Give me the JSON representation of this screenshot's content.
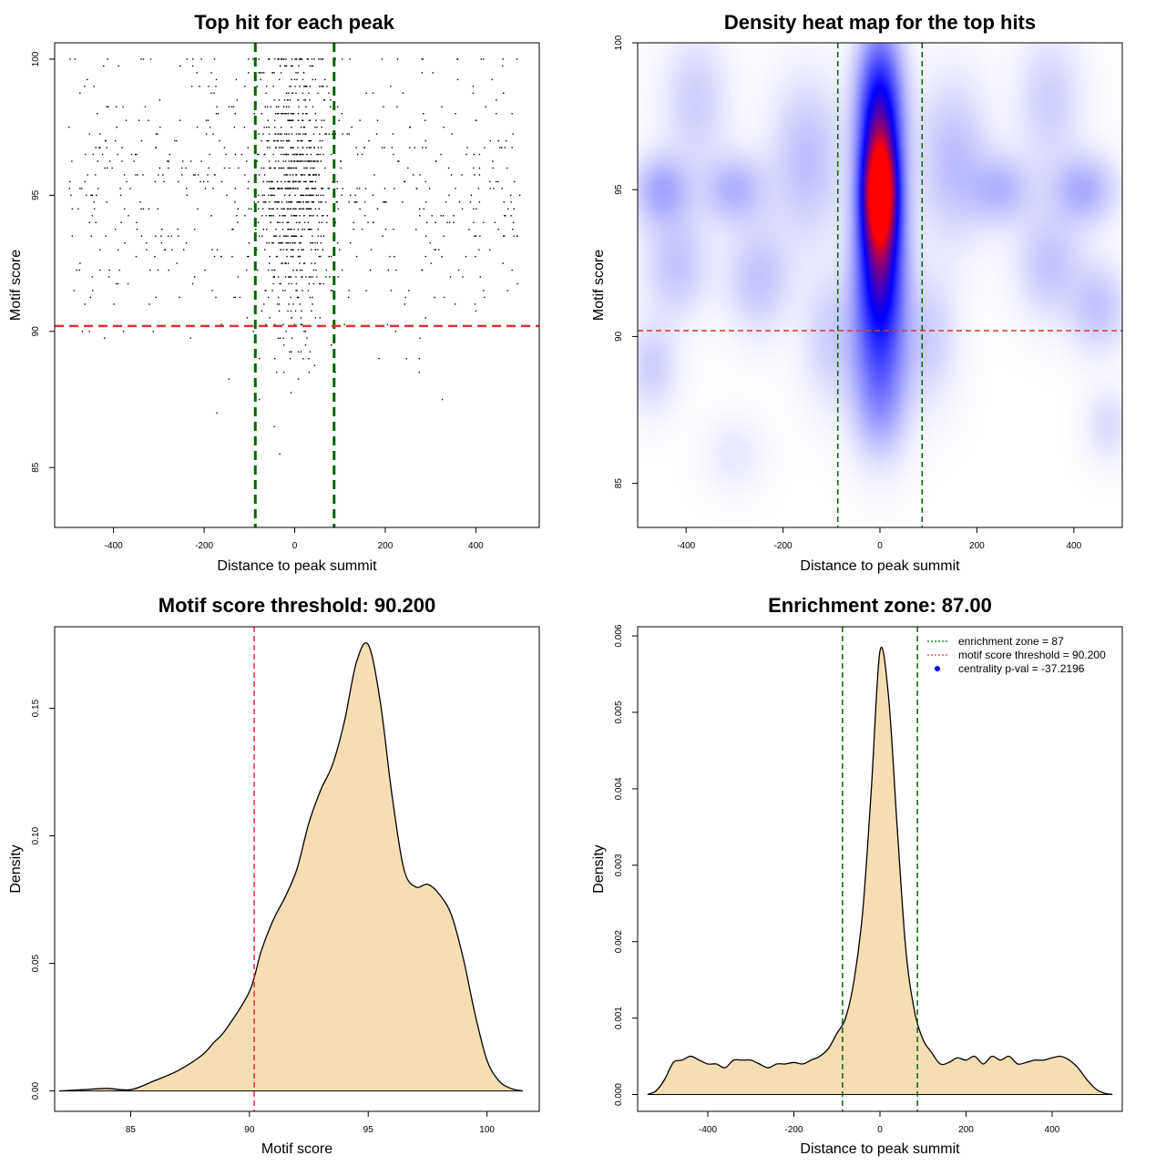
{
  "chart_data": [
    {
      "type": "scatter",
      "title": "Top hit for each peak",
      "xlabel": "Distance to peak summit",
      "ylabel": "Motif score",
      "xlim": [
        -530,
        540
      ],
      "ylim": [
        82.8,
        100.6
      ],
      "xticks": [
        "-400",
        "-200",
        "0",
        "200",
        "400"
      ],
      "xtick_values": [
        -400,
        -200,
        0,
        200,
        400
      ],
      "yticks": [
        "85",
        "90",
        "95",
        "100"
      ],
      "ytick_values": [
        85,
        90,
        95,
        100
      ],
      "vlines": [
        -87,
        87
      ],
      "vline_color": "#006400",
      "hline": 90.2,
      "hline_color": "#dd3333",
      "point_color": "#000000",
      "sampling": {
        "n_points": 1400,
        "central_fraction": 0.55,
        "central_sd": 40,
        "score_mean": 95.2,
        "score_sd": 2.6,
        "x_range": [
          -500,
          500
        ]
      }
    },
    {
      "type": "heatmap",
      "title": "Density heat map for the top hits",
      "xlabel": "Distance to peak summit",
      "ylabel": "Motif score",
      "xlim": [
        -500,
        500
      ],
      "ylim": [
        83.5,
        100
      ],
      "xticks": [
        "-400",
        "-200",
        "0",
        "200",
        "400"
      ],
      "xtick_values": [
        -400,
        -200,
        0,
        200,
        400
      ],
      "yticks": [
        "85",
        "90",
        "95",
        "100"
      ],
      "ytick_values": [
        85,
        90,
        95,
        100
      ],
      "vlines": [
        -87,
        87
      ],
      "vline_color": "#006400",
      "hline": 90.2,
      "hline_color": "#dd3333",
      "color_scale": [
        "#ffffff",
        "#0000ff",
        "#ff0000"
      ],
      "peak": {
        "x": 0,
        "y": 94.9
      },
      "blobs": [
        {
          "x": 0,
          "y": 94.9,
          "sx": 24,
          "sy": 1.3,
          "w": 1.0
        },
        {
          "x": 0,
          "y": 97.5,
          "sx": 30,
          "sy": 1.8,
          "w": 0.55
        },
        {
          "x": 0,
          "y": 92.5,
          "sx": 32,
          "sy": 1.8,
          "w": 0.55
        },
        {
          "x": 0,
          "y": 89.5,
          "sx": 38,
          "sy": 1.7,
          "w": 0.22
        },
        {
          "x": 0,
          "y": 87.5,
          "sx": 38,
          "sy": 1.2,
          "w": 0.08
        },
        {
          "x": -450,
          "y": 95,
          "sx": 40,
          "sy": 0.8,
          "w": 0.14
        },
        {
          "x": -300,
          "y": 95,
          "sx": 45,
          "sy": 0.8,
          "w": 0.12
        },
        {
          "x": -420,
          "y": 92.5,
          "sx": 45,
          "sy": 1.2,
          "w": 0.09
        },
        {
          "x": -250,
          "y": 92,
          "sx": 45,
          "sy": 1.2,
          "w": 0.09
        },
        {
          "x": -380,
          "y": 98,
          "sx": 45,
          "sy": 1.5,
          "w": 0.07
        },
        {
          "x": -150,
          "y": 96,
          "sx": 50,
          "sy": 1.8,
          "w": 0.1
        },
        {
          "x": 150,
          "y": 96,
          "sx": 50,
          "sy": 1.8,
          "w": 0.1
        },
        {
          "x": 250,
          "y": 95,
          "sx": 45,
          "sy": 0.8,
          "w": 0.11
        },
        {
          "x": 420,
          "y": 95,
          "sx": 45,
          "sy": 0.8,
          "w": 0.13
        },
        {
          "x": 350,
          "y": 92.5,
          "sx": 45,
          "sy": 1.2,
          "w": 0.09
        },
        {
          "x": 450,
          "y": 91,
          "sx": 40,
          "sy": 1.0,
          "w": 0.09
        },
        {
          "x": 350,
          "y": 98,
          "sx": 45,
          "sy": 1.5,
          "w": 0.07
        },
        {
          "x": -470,
          "y": 89,
          "sx": 35,
          "sy": 1.0,
          "w": 0.07
        },
        {
          "x": 470,
          "y": 87,
          "sx": 30,
          "sy": 0.8,
          "w": 0.05
        },
        {
          "x": -300,
          "y": 86,
          "sx": 40,
          "sy": 0.8,
          "w": 0.03
        },
        {
          "x": -100,
          "y": 90,
          "sx": 40,
          "sy": 1.5,
          "w": 0.07
        },
        {
          "x": 100,
          "y": 90,
          "sx": 40,
          "sy": 1.5,
          "w": 0.07
        }
      ]
    },
    {
      "type": "area",
      "title": "Motif score threshold: 90.200",
      "xlabel": "Motif score",
      "ylabel": "Density",
      "xlim": [
        81.8,
        102.2
      ],
      "ylim": [
        -0.008,
        0.182
      ],
      "xticks": [
        "85",
        "90",
        "95",
        "100"
      ],
      "xtick_values": [
        85,
        90,
        95,
        100
      ],
      "yticks": [
        "0.00",
        "0.05",
        "0.10",
        "0.15"
      ],
      "ytick_values": [
        0,
        0.05,
        0.1,
        0.15
      ],
      "vline": 90.2,
      "vline_color": "#dd3333",
      "fill": "#f5deb3",
      "x": [
        82.0,
        83.0,
        84.0,
        85.0,
        86.0,
        87.0,
        88.0,
        88.5,
        89.0,
        90.0,
        90.5,
        91.0,
        91.5,
        92.0,
        92.5,
        93.0,
        93.5,
        94.0,
        94.5,
        95.0,
        95.5,
        96.0,
        96.5,
        97.0,
        97.5,
        98.0,
        98.5,
        99.0,
        99.5,
        100.0,
        100.5,
        101.0,
        101.5
      ],
      "y": [
        0.0,
        0.0005,
        0.001,
        0.0005,
        0.004,
        0.008,
        0.014,
        0.019,
        0.024,
        0.039,
        0.055,
        0.067,
        0.076,
        0.087,
        0.105,
        0.118,
        0.128,
        0.145,
        0.168,
        0.175,
        0.153,
        0.116,
        0.087,
        0.08,
        0.081,
        0.077,
        0.069,
        0.052,
        0.03,
        0.012,
        0.004,
        0.001,
        0.0
      ]
    },
    {
      "type": "area",
      "title": "Enrichment zone: 87.00",
      "xlabel": "Distance to peak summit",
      "ylabel": "Density",
      "xlim": [
        -563,
        563
      ],
      "ylim": [
        -0.00022,
        0.00612
      ],
      "xticks": [
        "-400",
        "-200",
        "0",
        "200",
        "400"
      ],
      "xtick_values": [
        -400,
        -200,
        0,
        200,
        400
      ],
      "yticks": [
        "0.000",
        "0.001",
        "0.002",
        "0.003",
        "0.004",
        "0.005",
        "0.006"
      ],
      "ytick_values": [
        0,
        0.001,
        0.002,
        0.003,
        0.004,
        0.005,
        0.006
      ],
      "vlines": [
        -87,
        87
      ],
      "vline_color": "#006400",
      "fill": "#f5deb3",
      "x": [
        -540,
        -520,
        -500,
        -480,
        -460,
        -440,
        -420,
        -400,
        -380,
        -360,
        -340,
        -320,
        -300,
        -280,
        -260,
        -240,
        -220,
        -200,
        -180,
        -160,
        -140,
        -120,
        -100,
        -80,
        -60,
        -40,
        -20,
        0,
        20,
        40,
        60,
        80,
        100,
        120,
        140,
        160,
        180,
        200,
        220,
        240,
        260,
        280,
        300,
        320,
        340,
        360,
        380,
        400,
        420,
        440,
        460,
        480,
        500,
        520,
        540
      ],
      "y": [
        0.0,
        5e-05,
        0.0002,
        0.00042,
        0.00045,
        0.0005,
        0.00045,
        0.0004,
        0.0004,
        0.00035,
        0.00045,
        0.00045,
        0.00045,
        0.0004,
        0.00035,
        0.0004,
        0.0004,
        0.00042,
        0.0004,
        0.00045,
        0.0005,
        0.0006,
        0.0008,
        0.001,
        0.0015,
        0.0024,
        0.004,
        0.0058,
        0.0052,
        0.0035,
        0.0019,
        0.0011,
        0.00072,
        0.00055,
        0.0004,
        0.00042,
        0.00048,
        0.00045,
        0.0005,
        0.0004,
        0.0005,
        0.00045,
        0.0005,
        0.0004,
        0.00042,
        0.00045,
        0.00045,
        0.00048,
        0.0005,
        0.00045,
        0.00035,
        0.0002,
        8e-05,
        2e-05,
        0.0
      ],
      "vline_dotted_legend": [
        {
          "label": "enrichment zone = 87",
          "kind": "dotted-line",
          "color": "#006400"
        },
        {
          "label": "motif score threshold = 90.200",
          "kind": "dotted-line",
          "color": "#dd3333"
        },
        {
          "label": "centrality p-val = -37.2196",
          "kind": "dot",
          "color": "#0000ff"
        }
      ],
      "legend_position": "top-right"
    }
  ]
}
